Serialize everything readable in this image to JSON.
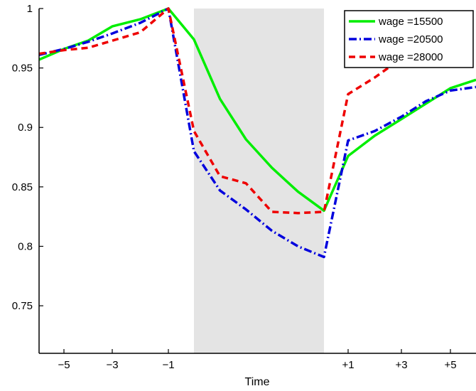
{
  "chart_data": {
    "type": "line",
    "xlabel": "Time",
    "ylabel": "",
    "title": "",
    "xlim": [
      -6,
      6
    ],
    "ylim": [
      0.71,
      1.0
    ],
    "x_ticks": [
      {
        "value": -5,
        "label": "−5"
      },
      {
        "value": -3,
        "label": "−3"
      },
      {
        "value": -1,
        "label": "−1"
      },
      {
        "value": 1,
        "label": "+1"
      },
      {
        "value": 3,
        "label": "+3"
      },
      {
        "value": 5,
        "label": "+5"
      }
    ],
    "y_ticks": [
      {
        "value": 0.75,
        "label": "0.75"
      },
      {
        "value": 0.8,
        "label": "0.8"
      },
      {
        "value": 0.85,
        "label": "0.85"
      },
      {
        "value": 0.9,
        "label": "0.9"
      },
      {
        "value": 0.95,
        "label": "0.95"
      },
      {
        "value": 1.0,
        "label": "1"
      }
    ],
    "shaded_region": {
      "x_start": 0,
      "x_end": 0.05,
      "color": "#e4e4e4"
    },
    "legend_position": "top-right",
    "series": [
      {
        "name": "wage =15500",
        "color": "#00ee00",
        "style": "solid",
        "points": [
          [
            -6,
            0.957
          ],
          [
            -5,
            0.966
          ],
          [
            -4,
            0.973
          ],
          [
            -3,
            0.985
          ],
          [
            -2,
            0.991
          ],
          [
            -1,
            1.0
          ],
          [
            0.0,
            0.974
          ],
          [
            0.01,
            0.924
          ],
          [
            0.02,
            0.89
          ],
          [
            0.03,
            0.866
          ],
          [
            0.04,
            0.846
          ],
          [
            0.05,
            0.83
          ],
          [
            1,
            0.876
          ],
          [
            2,
            0.893
          ],
          [
            3,
            0.907
          ],
          [
            4,
            0.92
          ],
          [
            5,
            0.933
          ],
          [
            6,
            0.94
          ]
        ]
      },
      {
        "name": "wage =20500",
        "color": "#0000dd",
        "style": "dashdot",
        "points": [
          [
            -6,
            0.961
          ],
          [
            -5,
            0.966
          ],
          [
            -4,
            0.972
          ],
          [
            -3,
            0.979
          ],
          [
            -2,
            0.988
          ],
          [
            -1,
            1.0
          ],
          [
            0.0,
            0.88
          ],
          [
            0.01,
            0.847
          ],
          [
            0.02,
            0.831
          ],
          [
            0.03,
            0.813
          ],
          [
            0.04,
            0.8
          ],
          [
            0.05,
            0.791
          ],
          [
            1,
            0.889
          ],
          [
            2,
            0.897
          ],
          [
            3,
            0.909
          ],
          [
            4,
            0.922
          ],
          [
            5,
            0.931
          ],
          [
            6,
            0.934
          ]
        ]
      },
      {
        "name": "wage =28000",
        "color": "#ee0000",
        "style": "dashed",
        "points": [
          [
            -6,
            0.962
          ],
          [
            -5,
            0.965
          ],
          [
            -4,
            0.967
          ],
          [
            -3,
            0.973
          ],
          [
            -2,
            0.98
          ],
          [
            -1,
            1.0
          ],
          [
            0.0,
            0.897
          ],
          [
            0.01,
            0.859
          ],
          [
            0.02,
            0.853
          ],
          [
            0.03,
            0.829
          ],
          [
            0.04,
            0.828
          ],
          [
            0.05,
            0.829
          ],
          [
            1,
            0.928
          ],
          [
            2,
            0.942
          ],
          [
            3,
            0.958
          ]
        ]
      }
    ]
  }
}
